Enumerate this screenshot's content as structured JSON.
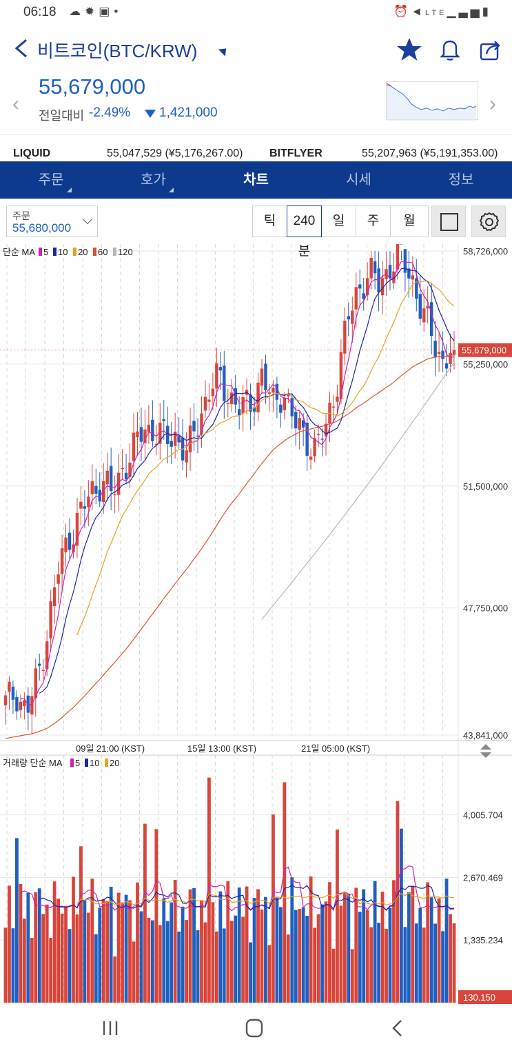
{
  "status_bar": {
    "time": "06:18",
    "icons_left": [
      "weather-icon",
      "gear-icon",
      "bag-icon",
      "dot-icon"
    ],
    "icons_right": [
      "alarm-icon",
      "mute-icon",
      "lte-signal-icon",
      "battery-icon"
    ],
    "lte": "LTE"
  },
  "header": {
    "title": "비트코인(BTC/KRW)"
  },
  "price": {
    "current": "55,679,000",
    "label": "전일대비",
    "change_pct": "-2.49%",
    "change_amount": "1,421,000"
  },
  "exchanges": [
    {
      "name": "LIQUID",
      "value": "55,047,529 (¥5,176,267.00)"
    },
    {
      "name": "BITFLYER",
      "value": "55,207,963 (¥5,191,353.00)"
    }
  ],
  "tabs": [
    {
      "label": "주문",
      "active": false,
      "dropdown": true
    },
    {
      "label": "호가",
      "active": false,
      "dropdown": true
    },
    {
      "label": "차트",
      "active": true,
      "dropdown": false
    },
    {
      "label": "시세",
      "active": false,
      "dropdown": false
    },
    {
      "label": "정보",
      "active": false,
      "dropdown": false
    }
  ],
  "toolbar": {
    "order_label": "주문",
    "order_value": "55,680,000",
    "periods": [
      "틱",
      "240분",
      "일",
      "주",
      "월"
    ],
    "active_period": "240분"
  },
  "colors": {
    "up": "#d9453a",
    "down": "#1f5fc0",
    "accent": "#0d3a8d",
    "ma5": "#d21fb5",
    "ma10": "#1a24a8",
    "ma20": "#e9a21b",
    "ma60": "#e0512a",
    "ma120": "#b8b8b8"
  },
  "chart_data": [
    {
      "type": "candlestick",
      "legend": {
        "label": "단순 MA",
        "periods": [
          "5",
          "10",
          "20",
          "60",
          "120"
        ]
      },
      "y_ticks": [
        "58,726,000",
        "55,250,000",
        "51,500,000",
        "47,750,000",
        "43,841,000"
      ],
      "last_price_label": "55,679,000",
      "x_ticks": [
        "09일 21:00 (KST)",
        "15일 13:00 (KST)",
        "21일 05:00 (KST)"
      ],
      "ylim": [
        43841000,
        58726000
      ],
      "close_path": [
        44800000,
        45200000,
        44500000,
        45600000,
        47200000,
        49000000,
        50000000,
        50600000,
        51300000,
        51700000,
        51200000,
        52100000,
        52600000,
        53300000,
        53200000,
        52900000,
        53100000,
        52400000,
        53500000,
        54400000,
        54800000,
        54300000,
        53800000,
        54100000,
        54900000,
        54000000,
        54500000,
        53400000,
        53100000,
        52600000,
        53300000,
        54700000,
        56500000,
        57600000,
        58000000,
        57700000,
        58300000,
        58500000,
        58000000,
        56800000,
        56100000,
        55300000,
        55679000
      ]
    },
    {
      "type": "bar",
      "legend": {
        "label": "거래량 단순 MA",
        "periods": [
          "5",
          "10",
          "20"
        ]
      },
      "y_ticks": [
        "4,005.704",
        "2,670.469",
        "1,335.234"
      ],
      "last_value_label": "130.150",
      "ylim": [
        0,
        5000
      ]
    }
  ]
}
